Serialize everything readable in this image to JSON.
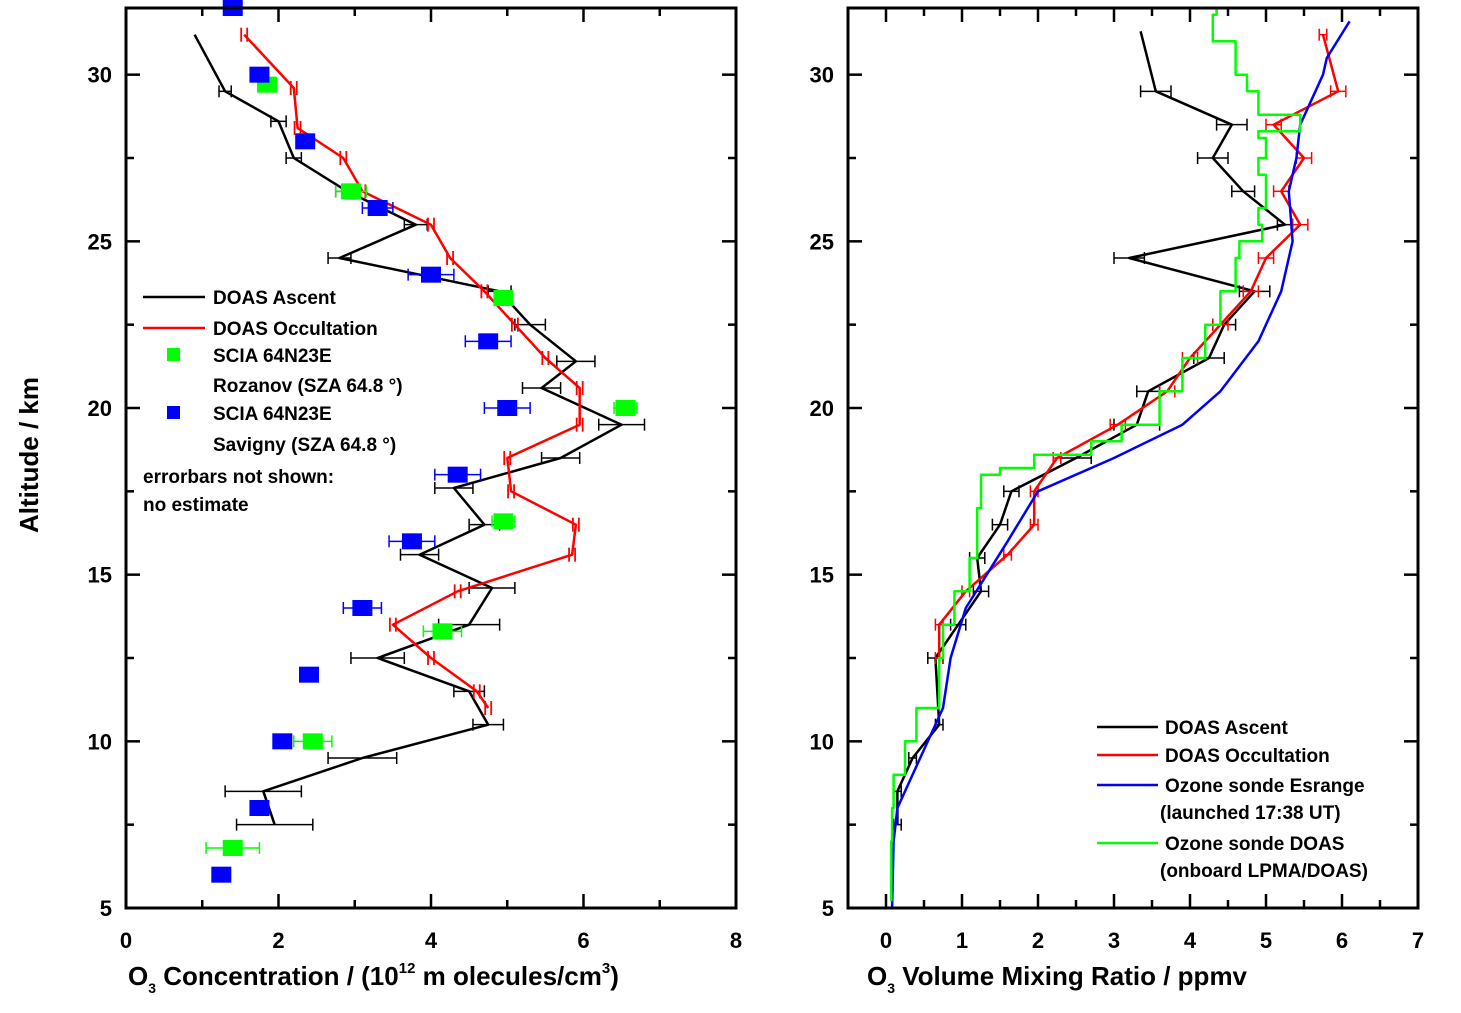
{
  "left": {
    "ylabel": "Altitude / km",
    "xlabel_parts": {
      "pre": "O",
      "sub": "3",
      "mid": " Concentration / (10",
      "sup": "12",
      "post": " m olecules/cm",
      "sup2": "3",
      "end": ")"
    },
    "xlim": [
      0,
      8
    ],
    "ylim": [
      5,
      32
    ],
    "xticks": [
      "0",
      "2",
      "4",
      "6",
      "8"
    ],
    "yticks": [
      "5",
      "10",
      "15",
      "20",
      "25",
      "30"
    ],
    "legend": {
      "ascent": "DOAS Ascent",
      "occultation": "DOAS Occultation",
      "rozanov_1": "SCIA 64N23E",
      "rozanov_2": "Rozanov (SZA 64.8 °)",
      "savigny_1": "SCIA 64N23E",
      "savigny_2": "Savigny (SZA 64.8 °)",
      "note_1": "errorbars not shown:",
      "note_2": "no estimate"
    }
  },
  "right": {
    "xlabel_parts": {
      "pre": "O",
      "sub": "3",
      "post": " Volume Mixing Ratio / ppmv"
    },
    "xlim": [
      -0.5,
      7
    ],
    "ylim": [
      5,
      32
    ],
    "xticks": [
      "0",
      "1",
      "2",
      "3",
      "4",
      "5",
      "6",
      "7"
    ],
    "yticks": [
      "5",
      "10",
      "15",
      "20",
      "25",
      "30"
    ],
    "legend": {
      "ascent": "DOAS Ascent",
      "occultation": "DOAS Occultation",
      "esrange_1": "Ozone sonde Esrange",
      "esrange_2": "(launched 17:38 UT)",
      "sonde_1": "Ozone sonde DOAS",
      "sonde_2": "(onboard LPMA/DOAS)"
    }
  },
  "colors": {
    "ascent": "#000000",
    "occultation": "#ff0000",
    "rozanov": "#00ff00",
    "savigny": "#0000ff",
    "esrange": "#0000ff",
    "sonde": "#00ff00"
  },
  "chart_data": [
    {
      "type": "line",
      "title": "",
      "xlabel": "O3 Concentration / (10^12 molecules/cm3)",
      "ylabel": "Altitude / km",
      "xlim": [
        0,
        8
      ],
      "ylim": [
        5,
        32
      ],
      "series": [
        {
          "name": "DOAS Ascent",
          "points": [
            [
              0.9,
              31.2,
              0
            ],
            [
              1.3,
              29.5,
              0.08
            ],
            [
              2.0,
              28.6,
              0.1
            ],
            [
              2.2,
              27.5,
              0.1
            ],
            [
              2.9,
              26.5,
              0.15
            ],
            [
              3.8,
              25.5,
              0.15
            ],
            [
              2.8,
              24.5,
              0.15
            ],
            [
              4.9,
              23.5,
              0.15
            ],
            [
              5.3,
              22.5,
              0.2
            ],
            [
              5.9,
              21.4,
              0.25
            ],
            [
              5.45,
              20.6,
              0.25
            ],
            [
              6.5,
              19.5,
              0.3
            ],
            [
              5.7,
              18.5,
              0.25
            ],
            [
              4.3,
              17.6,
              0.25
            ],
            [
              4.7,
              16.5,
              0.2
            ],
            [
              3.85,
              15.6,
              0.25
            ],
            [
              4.8,
              14.6,
              0.3
            ],
            [
              4.5,
              13.5,
              0.4
            ],
            [
              3.3,
              12.5,
              0.35
            ],
            [
              4.5,
              11.5,
              0.2
            ],
            [
              4.75,
              10.5,
              0.2
            ],
            [
              3.1,
              9.5,
              0.45
            ],
            [
              1.8,
              8.5,
              0.5
            ],
            [
              1.95,
              7.5,
              0.5
            ]
          ]
        },
        {
          "name": "DOAS Occultation",
          "points": [
            [
              1.55,
              31.2,
              0
            ],
            [
              2.2,
              29.6,
              0
            ],
            [
              2.25,
              28.4,
              0
            ],
            [
              2.85,
              27.5,
              0
            ],
            [
              3.1,
              26.5,
              0
            ],
            [
              4.0,
              25.5,
              0
            ],
            [
              4.25,
              24.5,
              0
            ],
            [
              4.7,
              23.5,
              0
            ],
            [
              5.1,
              22.5,
              0
            ],
            [
              5.5,
              21.5,
              0
            ],
            [
              5.95,
              20.6,
              0
            ],
            [
              5.95,
              19.5,
              0
            ],
            [
              5.0,
              18.5,
              0
            ],
            [
              5.05,
              17.5,
              0
            ],
            [
              5.9,
              16.5,
              0
            ],
            [
              5.85,
              15.6,
              0
            ],
            [
              4.35,
              14.5,
              0
            ],
            [
              3.5,
              13.5,
              0
            ],
            [
              4.0,
              12.5,
              0
            ],
            [
              4.6,
              11.5,
              0
            ],
            [
              4.75,
              11.0,
              0
            ]
          ]
        },
        {
          "name": "SCIA 64N23E Rozanov (SZA 64.8 °)",
          "points": [
            [
              1.85,
              29.7,
              0.1
            ],
            [
              2.95,
              26.5,
              0.2
            ],
            [
              4.95,
              23.3,
              0.1
            ],
            [
              6.55,
              20.0,
              0.15
            ],
            [
              4.95,
              16.6,
              0.15
            ],
            [
              4.15,
              13.3,
              0.25
            ],
            [
              2.45,
              10.0,
              0.25
            ],
            [
              1.4,
              6.8,
              0.35
            ]
          ]
        },
        {
          "name": "SCIA 64N23E Savigny (SZA 64.8 °)",
          "points": [
            [
              1.4,
              32.0,
              0
            ],
            [
              1.75,
              30.0,
              0
            ],
            [
              2.35,
              28.0,
              0
            ],
            [
              3.3,
              26.0,
              0.2
            ],
            [
              4.0,
              24.0,
              0.3
            ],
            [
              4.75,
              22.0,
              0.3
            ],
            [
              5.0,
              20.0,
              0.3
            ],
            [
              4.35,
              18.0,
              0.3
            ],
            [
              3.75,
              16.0,
              0.3
            ],
            [
              3.1,
              14.0,
              0.25
            ],
            [
              2.4,
              12.0,
              0
            ],
            [
              2.05,
              10.0,
              0
            ],
            [
              1.75,
              8.0,
              0
            ],
            [
              1.25,
              6.0,
              0
            ]
          ]
        }
      ]
    },
    {
      "type": "line",
      "title": "",
      "xlabel": "O3 Volume Mixing Ratio / ppmv",
      "xlim": [
        -0.5,
        7
      ],
      "ylim": [
        5,
        32
      ],
      "series": [
        {
          "name": "DOAS Ascent",
          "points": [
            [
              3.35,
              31.3,
              0
            ],
            [
              3.55,
              29.5,
              0.2
            ],
            [
              4.55,
              28.5,
              0.2
            ],
            [
              4.3,
              27.5,
              0.2
            ],
            [
              4.7,
              26.5,
              0.15
            ],
            [
              5.25,
              25.5,
              0.1
            ],
            [
              3.2,
              24.5,
              0.2
            ],
            [
              4.85,
              23.5,
              0.2
            ],
            [
              4.45,
              22.5,
              0.15
            ],
            [
              4.25,
              21.5,
              0.2
            ],
            [
              3.45,
              20.5,
              0.15
            ],
            [
              3.3,
              19.5,
              0.3
            ],
            [
              2.5,
              18.5,
              0.2
            ],
            [
              1.65,
              17.5,
              0.1
            ],
            [
              1.5,
              16.5,
              0.1
            ],
            [
              1.2,
              15.5,
              0.1
            ],
            [
              1.25,
              14.5,
              0.1
            ],
            [
              0.95,
              13.5,
              0.1
            ],
            [
              0.65,
              12.5,
              0.1
            ],
            [
              0.7,
              10.5,
              0.05
            ],
            [
              0.35,
              9.5,
              0.05
            ],
            [
              0.15,
              8.5,
              0.05
            ],
            [
              0.15,
              7.5,
              0.05
            ]
          ]
        },
        {
          "name": "DOAS Occultation",
          "points": [
            [
              5.75,
              31.2,
              0.05
            ],
            [
              5.95,
              29.5,
              0.1
            ],
            [
              5.1,
              28.5,
              0.1
            ],
            [
              5.5,
              27.5,
              0.1
            ],
            [
              5.2,
              26.5,
              0.1
            ],
            [
              5.45,
              25.5,
              0.1
            ],
            [
              5.0,
              24.5,
              0.1
            ],
            [
              4.8,
              23.5,
              0.1
            ],
            [
              4.4,
              22.5,
              0.1
            ],
            [
              4.0,
              21.5,
              0.1
            ],
            [
              3.7,
              20.5,
              0.1
            ],
            [
              3.05,
              19.5,
              0.1
            ],
            [
              2.25,
              18.5,
              0.05
            ],
            [
              1.95,
              17.5,
              0.05
            ],
            [
              1.95,
              16.5,
              0.05
            ],
            [
              1.6,
              15.6,
              0.05
            ],
            [
              1.05,
              14.5,
              0.05
            ],
            [
              0.7,
              13.5,
              0.05
            ],
            [
              0.7,
              12.5,
              0.05
            ]
          ]
        },
        {
          "name": "Ozone sonde Esrange (launched 17:38 UT)",
          "points": [
            [
              6.1,
              31.6
            ],
            [
              5.8,
              30.5
            ],
            [
              5.75,
              30.0
            ],
            [
              5.45,
              28.5
            ],
            [
              5.4,
              27.5
            ],
            [
              5.3,
              26.5
            ],
            [
              5.35,
              25.0
            ],
            [
              5.2,
              23.5
            ],
            [
              4.9,
              22.0
            ],
            [
              4.4,
              20.5
            ],
            [
              3.9,
              19.5
            ],
            [
              3.0,
              18.5
            ],
            [
              2.0,
              17.5
            ],
            [
              1.6,
              16.0
            ],
            [
              1.05,
              14.0
            ],
            [
              0.85,
              12.5
            ],
            [
              0.75,
              11.0
            ],
            [
              0.45,
              9.5
            ],
            [
              0.15,
              8.0
            ],
            [
              0.1,
              7.0
            ],
            [
              0.08,
              5.0
            ]
          ]
        },
        {
          "name": "Ozone sonde DOAS (onboard LPMA/DOAS)",
          "points": [
            [
              4.65,
              32.0
            ],
            [
              4.35,
              31.8
            ],
            [
              4.3,
              31.5
            ],
            [
              4.3,
              31.0
            ],
            [
              4.6,
              30.5
            ],
            [
              4.6,
              30.0
            ],
            [
              4.75,
              29.5
            ],
            [
              4.9,
              28.8
            ],
            [
              5.45,
              28.5
            ],
            [
              5.45,
              28.3
            ],
            [
              4.9,
              28.1
            ],
            [
              5.0,
              27.5
            ],
            [
              4.9,
              27.0
            ],
            [
              5.0,
              26.0
            ],
            [
              4.9,
              25.5
            ],
            [
              4.95,
              25.0
            ],
            [
              4.65,
              24.5
            ],
            [
              4.6,
              23.5
            ],
            [
              4.4,
              22.5
            ],
            [
              4.2,
              21.5
            ],
            [
              3.9,
              20.5
            ],
            [
              3.6,
              19.5
            ],
            [
              3.1,
              19.0
            ],
            [
              2.7,
              18.6
            ],
            [
              1.95,
              18.2
            ],
            [
              1.5,
              18.0
            ],
            [
              1.25,
              17.0
            ],
            [
              1.2,
              15.5
            ],
            [
              1.1,
              14.5
            ],
            [
              0.9,
              13.5
            ],
            [
              0.75,
              12.5
            ],
            [
              0.7,
              11.0
            ],
            [
              0.4,
              10.0
            ],
            [
              0.25,
              9.0
            ],
            [
              0.1,
              8.0
            ],
            [
              0.08,
              7.0
            ],
            [
              0.07,
              5.2
            ]
          ]
        }
      ]
    }
  ]
}
